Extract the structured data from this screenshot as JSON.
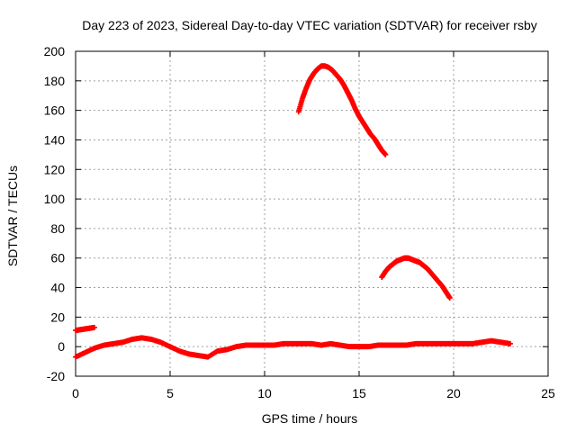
{
  "chart_data": {
    "type": "scatter",
    "title": "Day 223 of 2023, Sidereal Day-to-day VTEC variation (SDTVAR) for receiver rsby",
    "xlabel": "GPS time / hours",
    "ylabel": "SDTVAR / TECUs",
    "xlim": [
      0,
      25
    ],
    "ylim": [
      -20,
      200
    ],
    "xticks": [
      0,
      5,
      10,
      15,
      20,
      25
    ],
    "yticks": [
      -20,
      0,
      20,
      40,
      60,
      80,
      100,
      120,
      140,
      160,
      180,
      200
    ],
    "xtick_labels": [
      "0",
      "5",
      "10",
      "15",
      "20",
      "25"
    ],
    "ytick_labels": [
      "-20",
      "0",
      "20",
      "40",
      "60",
      "80",
      "100",
      "120",
      "140",
      "160",
      "180",
      "200"
    ],
    "grid": true,
    "marker": "plus",
    "series_color": "#ff0000",
    "series": [
      {
        "name": "baseline",
        "x": [
          0,
          0.5,
          1,
          1.5,
          2,
          2.5,
          3,
          3.5,
          4,
          4.5,
          5,
          5.5,
          6,
          6.5,
          7,
          7.5,
          8,
          8.5,
          9,
          9.5,
          10,
          10.5,
          11,
          11.5,
          12,
          12.5,
          13,
          13.5,
          14,
          14.5,
          15,
          15.5,
          16,
          16.5,
          17,
          17.5,
          18,
          18.5,
          19,
          19.5,
          20,
          20.5,
          21,
          21.5,
          22,
          22.5,
          23
        ],
        "y": [
          -7,
          -4,
          -1,
          1,
          2,
          3,
          5,
          6,
          5,
          3,
          0,
          -3,
          -5,
          -6,
          -7,
          -3,
          -2,
          0,
          1,
          1,
          1,
          1,
          2,
          2,
          2,
          2,
          1,
          2,
          1,
          0,
          0,
          0,
          1,
          1,
          1,
          1,
          2,
          2,
          2,
          2,
          2,
          2,
          2,
          3,
          4,
          3,
          2
        ]
      },
      {
        "name": "segment-a",
        "x": [
          0,
          0.25,
          0.5,
          0.75,
          1
        ],
        "y": [
          11,
          11.5,
          12,
          12.5,
          13
        ]
      },
      {
        "name": "segment-b",
        "x": [
          11.8,
          12.0,
          12.2,
          12.4,
          12.6,
          12.8,
          13.0,
          13.2,
          13.4,
          13.6,
          13.8,
          14.0,
          14.2,
          14.4,
          14.6,
          14.8,
          15.0,
          15.2,
          15.4,
          15.6,
          15.8,
          16.0,
          16.2,
          16.4
        ],
        "y": [
          159,
          168,
          175,
          181,
          185,
          188,
          190,
          190,
          189,
          187,
          184,
          181,
          177,
          172,
          167,
          161,
          156,
          152,
          148,
          144,
          141,
          137,
          133,
          130
        ]
      },
      {
        "name": "segment-c",
        "x": [
          16.2,
          16.4,
          16.6,
          16.8,
          17.0,
          17.2,
          17.4,
          17.6,
          17.8,
          18.0,
          18.2,
          18.4,
          18.6,
          18.8,
          19.0,
          19.2,
          19.4,
          19.6,
          19.8
        ],
        "y": [
          47,
          51,
          54,
          56,
          58,
          59,
          60,
          60,
          59,
          58,
          57,
          55,
          53,
          50,
          47,
          44,
          41,
          37,
          33
        ]
      }
    ]
  }
}
